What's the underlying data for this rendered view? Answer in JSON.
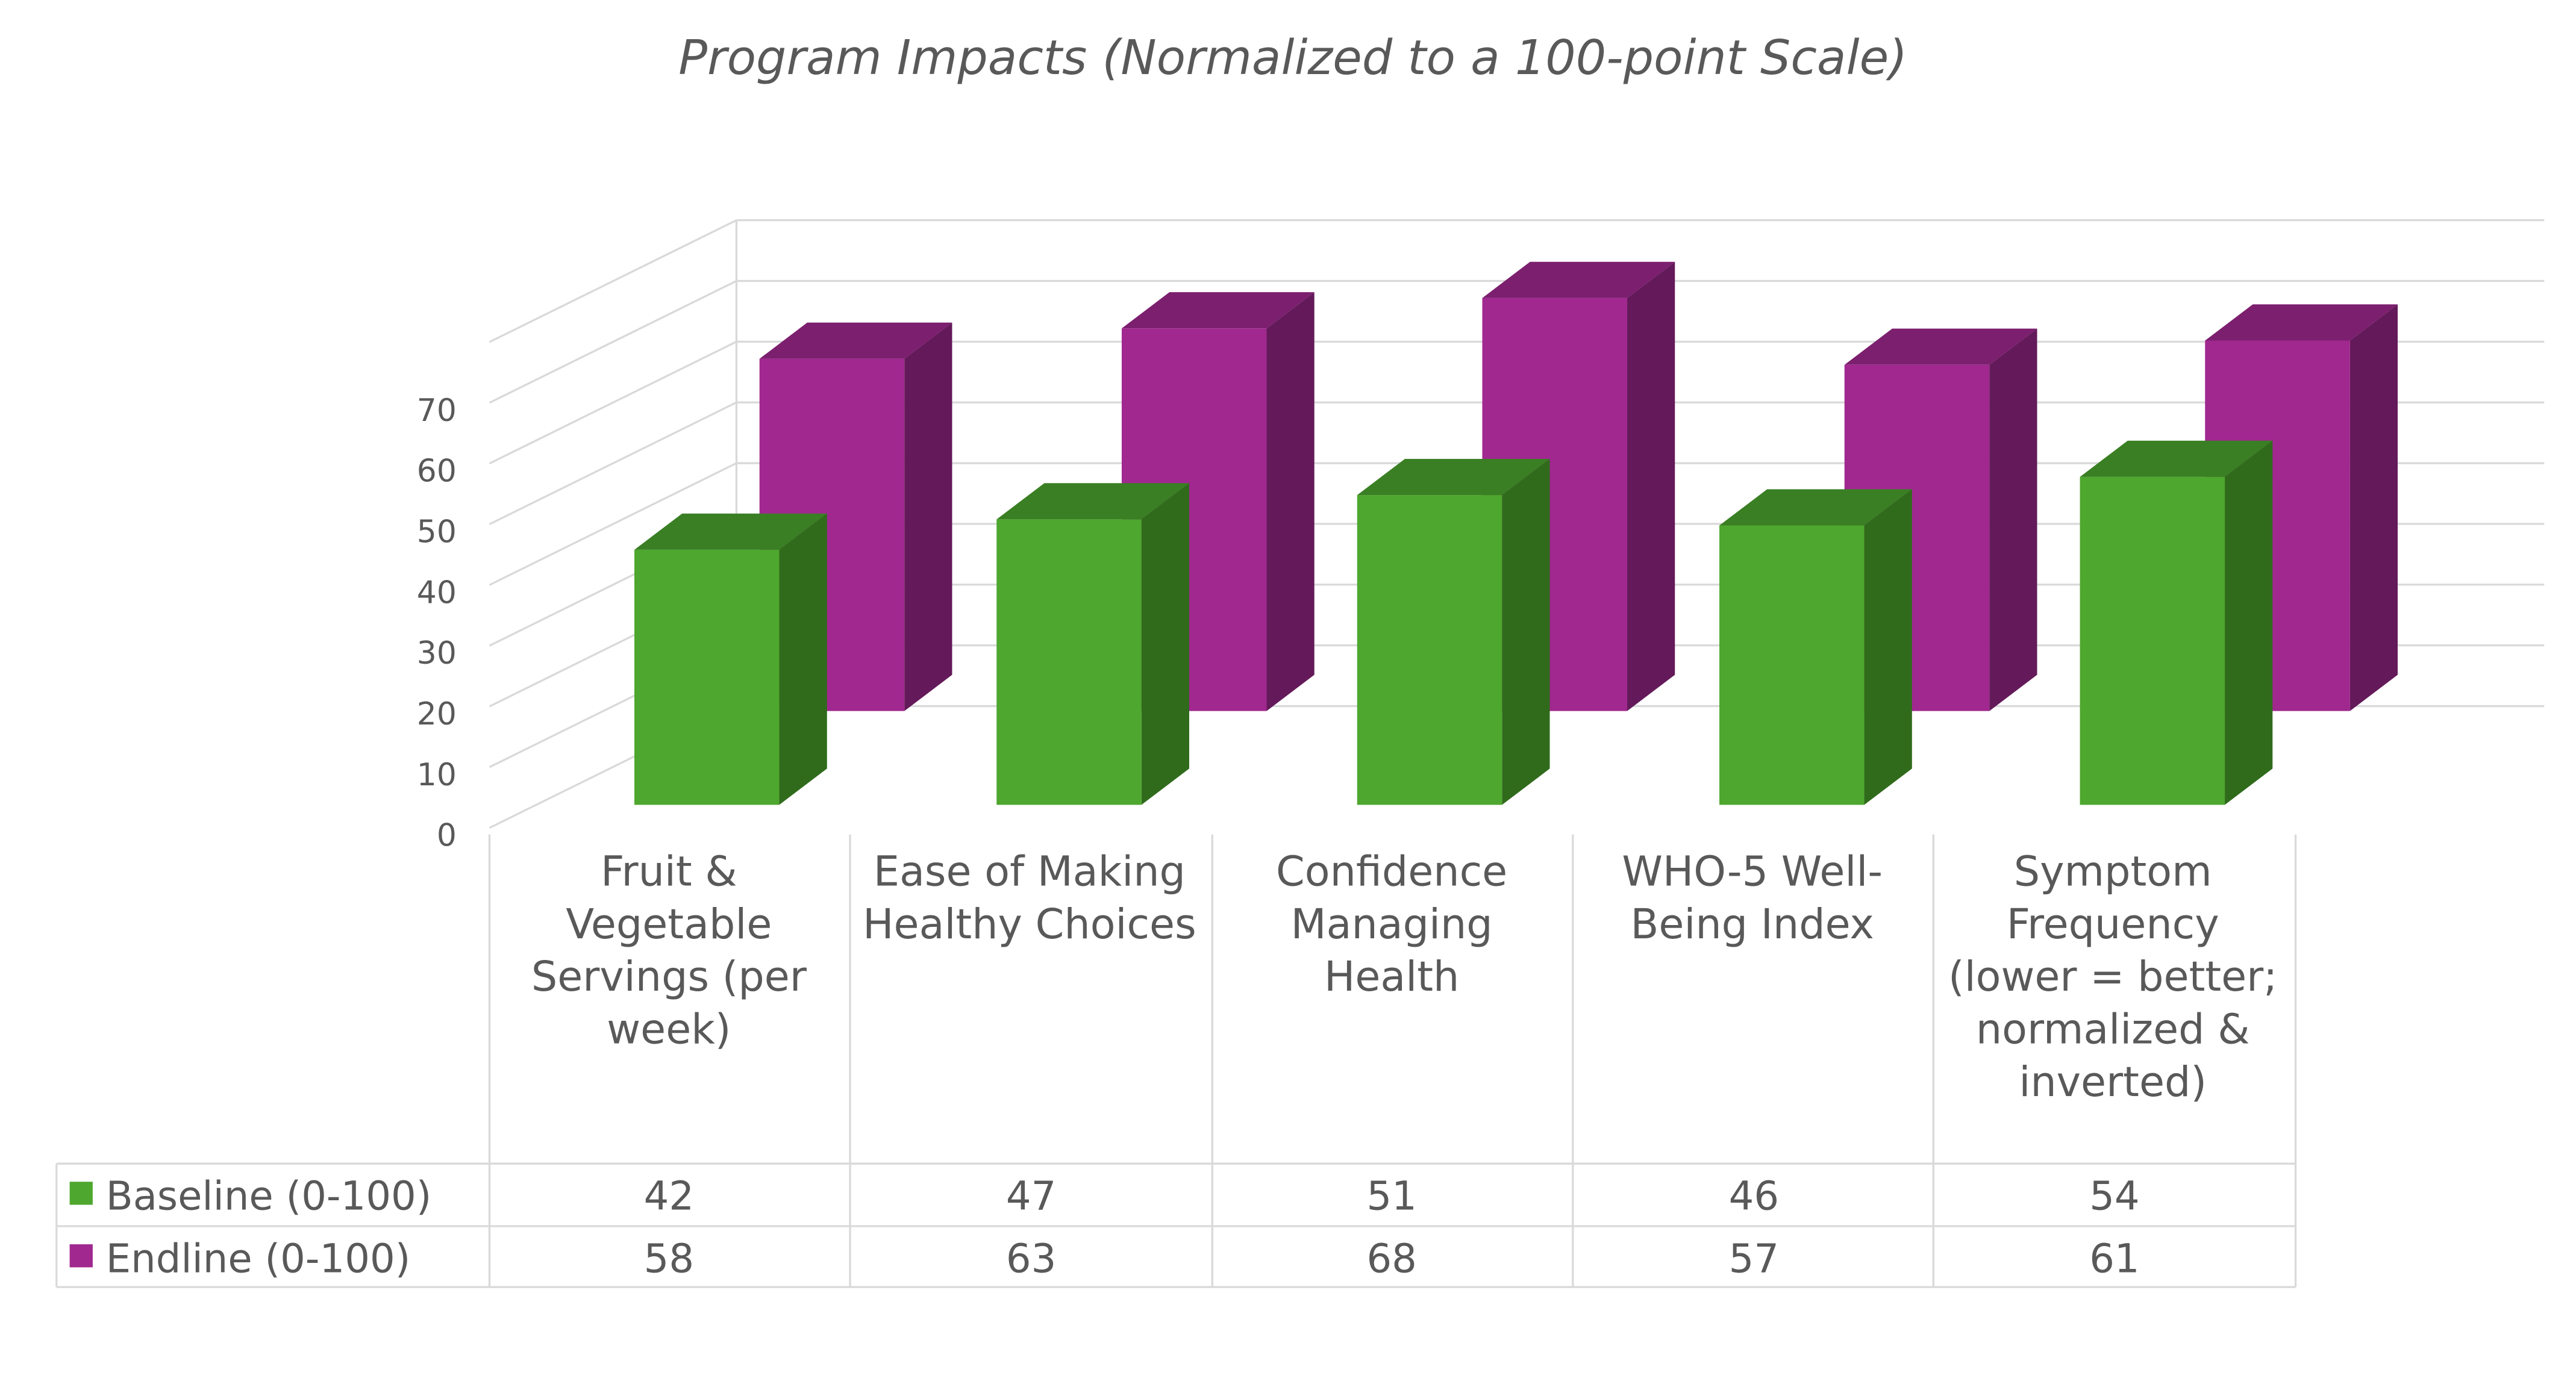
{
  "chart_data": {
    "type": "bar",
    "style": "3d-clustered-column-with-data-table",
    "title": "Program Impacts (Normalized to a 100-point Scale)",
    "categories": [
      "Fruit & Vegetable Servings (per week)",
      "Ease of Making Healthy Choices",
      "Confidence Managing Health",
      "WHO-5 Well-Being Index",
      "Symptom Frequency (lower = better; normalized & inverted)"
    ],
    "series": [
      {
        "name": "Baseline (0-100)",
        "values": [
          42,
          47,
          51,
          46,
          54
        ],
        "color": "#4ea72e"
      },
      {
        "name": "Endline (0-100)",
        "values": [
          58,
          63,
          68,
          57,
          61
        ],
        "color": "#a0288f"
      }
    ],
    "yticks": [
      "0",
      "10",
      "20",
      "30",
      "40",
      "50",
      "60",
      "70"
    ],
    "ylim": [
      0,
      80
    ],
    "grid": true,
    "legend": "data-table"
  }
}
